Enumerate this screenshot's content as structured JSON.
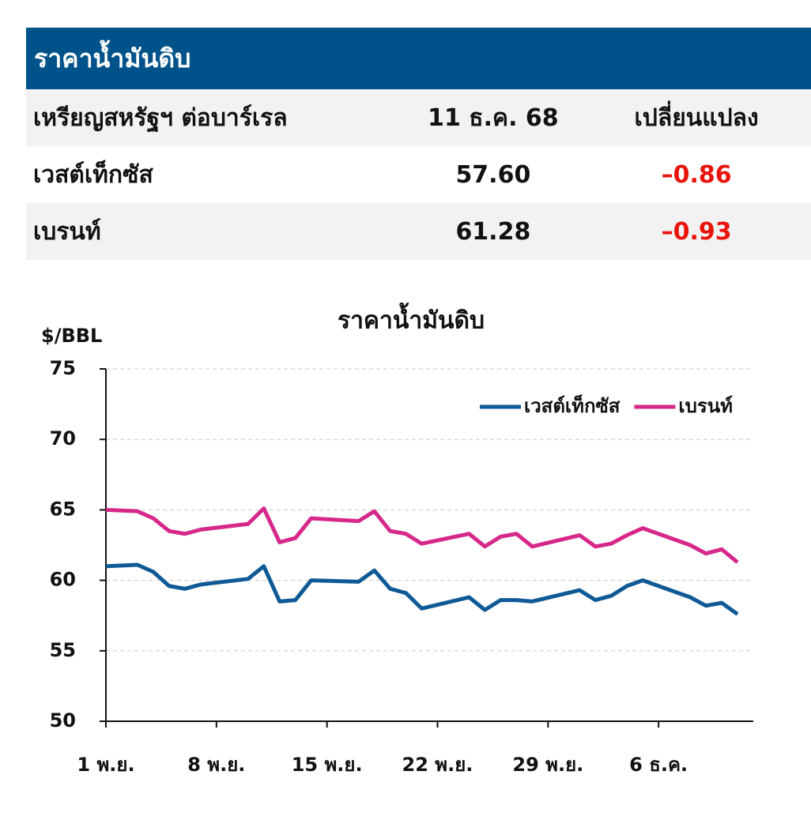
{
  "table": {
    "title": "ราคาน้ำมันดิบ",
    "columns": [
      "เหรียญสหรัฐฯ ต่อบาร์เรล",
      "11 ธ.ค. 68",
      "เปลี่ยนแปลง"
    ],
    "rows": [
      [
        "เวสต์เท็กซัส",
        "57.60",
        "–0.86"
      ],
      [
        "เบรนท์",
        "61.28",
        "–0.93"
      ]
    ]
  },
  "chart_data": {
    "type": "line",
    "title": "ราคาน้ำมันดิบ",
    "y_label": "$/BBL",
    "x": [
      0,
      2,
      3,
      4,
      5,
      6,
      9,
      10,
      11,
      12,
      13,
      16,
      17,
      18,
      19,
      20,
      23,
      24,
      25,
      26,
      27,
      30,
      31,
      32,
      33,
      34,
      37,
      38,
      39,
      40
    ],
    "series": [
      {
        "name": "เวสต์เท็กซัส",
        "color": "#0f5a96",
        "values": [
          61.0,
          61.1,
          60.6,
          59.6,
          59.4,
          59.7,
          60.1,
          61.0,
          58.5,
          58.6,
          60.0,
          59.9,
          60.7,
          59.4,
          59.1,
          58.0,
          58.8,
          57.9,
          58.6,
          58.6,
          58.5,
          59.3,
          58.6,
          58.9,
          59.6,
          60.0,
          58.8,
          58.2,
          58.4,
          57.6
        ]
      },
      {
        "name": "เบรนท์",
        "color": "#d6288a",
        "values": [
          65.0,
          64.9,
          64.4,
          63.5,
          63.3,
          63.6,
          64.0,
          65.1,
          62.7,
          63.0,
          64.4,
          64.2,
          64.9,
          63.5,
          63.3,
          62.6,
          63.3,
          62.4,
          63.1,
          63.3,
          62.4,
          63.2,
          62.4,
          62.6,
          63.2,
          63.7,
          62.5,
          61.9,
          62.2,
          61.28
        ]
      }
    ],
    "xlim": [
      0,
      41
    ],
    "xticks": [
      {
        "value": 0,
        "label": "1 พ.ย."
      },
      {
        "value": 7,
        "label": "8 พ.ย."
      },
      {
        "value": 14,
        "label": "15 พ.ย."
      },
      {
        "value": 21,
        "label": "22 พ.ย."
      },
      {
        "value": 28,
        "label": "29 พ.ย."
      },
      {
        "value": 35,
        "label": "6 ธ.ค."
      }
    ],
    "ylim": [
      50,
      75
    ],
    "yticks": [
      50,
      55,
      60,
      65,
      70,
      75
    ],
    "grid": true,
    "legend": "upper right"
  }
}
